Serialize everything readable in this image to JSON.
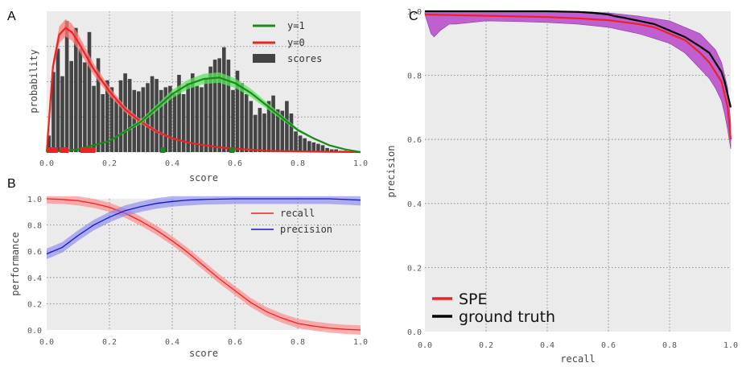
{
  "colors": {
    "bg": "#ebebeb",
    "green": "#1a8a1a",
    "green_band": "#5fe35f",
    "red": "#ee2222",
    "red_band": "#ff7b7b",
    "bars": "#444444",
    "blue": "#1515cc",
    "blue_band": "#8080ee",
    "black": "#000000",
    "magenta": "#c060d0"
  },
  "chart_data": [
    {
      "panel": "A",
      "type": "bar",
      "xlabel": "score",
      "ylabel": "probability",
      "xlim": [
        0,
        1
      ],
      "xticks": [
        "0.0",
        "0.2",
        "0.4",
        "0.6",
        "0.8",
        "1.0"
      ],
      "legend_position": "top-right",
      "grid": true,
      "legend": [
        {
          "label": "y=1",
          "kind": "line",
          "color": "green"
        },
        {
          "label": "y=0",
          "kind": "line",
          "color": "red"
        },
        {
          "label": "scores",
          "kind": "bar",
          "color": "bars"
        }
      ],
      "histogram": {
        "bin_start": 0.0,
        "bin_width": 0.0143,
        "heights": [
          0.12,
          0.58,
          0.75,
          0.55,
          0.95,
          0.66,
          0.9,
          0.75,
          0.65,
          0.87,
          0.48,
          0.68,
          0.42,
          0.52,
          0.47,
          0.38,
          0.52,
          0.57,
          0.53,
          0.45,
          0.44,
          0.47,
          0.5,
          0.55,
          0.53,
          0.45,
          0.47,
          0.48,
          0.42,
          0.56,
          0.42,
          0.5,
          0.57,
          0.48,
          0.47,
          0.53,
          0.62,
          0.67,
          0.68,
          0.76,
          0.67,
          0.45,
          0.59,
          0.5,
          0.42,
          0.37,
          0.27,
          0.32,
          0.28,
          0.37,
          0.41,
          0.31,
          0.3,
          0.37,
          0.28,
          0.15,
          0.12,
          0.1,
          0.08,
          0.07,
          0.06,
          0.05,
          0.03,
          0.02,
          0.02,
          0.01,
          0.01,
          0.0,
          0.0,
          0.0
        ]
      },
      "curves": [
        {
          "name": "y=0",
          "x": [
            0.0,
            0.02,
            0.04,
            0.06,
            0.08,
            0.1,
            0.12,
            0.15,
            0.2,
            0.25,
            0.3,
            0.35,
            0.4,
            0.45,
            0.5,
            0.55,
            0.6,
            0.7,
            0.8,
            0.9,
            1.0
          ],
          "y": [
            0.0,
            0.62,
            0.85,
            0.9,
            0.87,
            0.8,
            0.72,
            0.6,
            0.44,
            0.31,
            0.22,
            0.15,
            0.1,
            0.07,
            0.05,
            0.035,
            0.025,
            0.01,
            0.005,
            0.002,
            0.0
          ]
        },
        {
          "name": "y=1",
          "x": [
            0.0,
            0.1,
            0.2,
            0.3,
            0.35,
            0.4,
            0.45,
            0.5,
            0.55,
            0.6,
            0.65,
            0.7,
            0.75,
            0.8,
            0.85,
            0.9,
            0.95,
            1.0
          ],
          "y": [
            0.0,
            0.02,
            0.08,
            0.22,
            0.32,
            0.42,
            0.49,
            0.53,
            0.54,
            0.5,
            0.43,
            0.34,
            0.25,
            0.16,
            0.1,
            0.05,
            0.02,
            0.0
          ]
        }
      ],
      "rug": {
        "red": [
          0.01,
          0.025,
          0.05,
          0.06,
          0.115,
          0.125,
          0.135,
          0.145
        ],
        "green": [
          0.37,
          0.59
        ]
      }
    },
    {
      "panel": "B",
      "type": "line",
      "xlabel": "score",
      "ylabel": "performance",
      "xlim": [
        0,
        1
      ],
      "ylim": [
        0,
        1
      ],
      "xticks": [
        "0.0",
        "0.2",
        "0.4",
        "0.6",
        "0.8",
        "1.0"
      ],
      "yticks": [
        "0.0",
        "0.2",
        "0.4",
        "0.6",
        "0.8",
        "1.0"
      ],
      "legend_position": "top-right",
      "grid": true,
      "series": [
        {
          "name": "recall",
          "color": "red",
          "x": [
            0.0,
            0.05,
            0.1,
            0.15,
            0.2,
            0.25,
            0.3,
            0.35,
            0.4,
            0.45,
            0.5,
            0.55,
            0.6,
            0.65,
            0.7,
            0.75,
            0.8,
            0.85,
            0.9,
            0.95,
            1.0
          ],
          "y": [
            1.0,
            0.995,
            0.985,
            0.965,
            0.935,
            0.89,
            0.83,
            0.76,
            0.68,
            0.59,
            0.49,
            0.39,
            0.3,
            0.21,
            0.14,
            0.09,
            0.05,
            0.03,
            0.015,
            0.005,
            0.0
          ]
        },
        {
          "name": "precision",
          "color": "blue",
          "x": [
            0.0,
            0.05,
            0.1,
            0.15,
            0.2,
            0.25,
            0.3,
            0.35,
            0.4,
            0.45,
            0.5,
            0.6,
            0.7,
            0.8,
            0.9,
            1.0
          ],
          "y": [
            0.58,
            0.63,
            0.72,
            0.8,
            0.86,
            0.91,
            0.94,
            0.965,
            0.98,
            0.99,
            0.995,
            1.0,
            1.0,
            1.0,
            1.0,
            0.99
          ]
        }
      ]
    },
    {
      "panel": "C",
      "type": "line",
      "xlabel": "recall",
      "ylabel": "precision",
      "xlim": [
        0,
        1
      ],
      "ylim": [
        0,
        1
      ],
      "xticks": [
        "0.0",
        "0.2",
        "0.4",
        "0.6",
        "0.8",
        "1.0"
      ],
      "yticks": [
        "0.0",
        "0.2",
        "0.4",
        "0.6",
        "0.8",
        "1.0"
      ],
      "legend_position": "bottom-left",
      "grid": true,
      "series": [
        {
          "name": "SPE",
          "color": "red",
          "x": [
            0.0,
            0.1,
            0.2,
            0.3,
            0.4,
            0.5,
            0.6,
            0.7,
            0.75,
            0.8,
            0.85,
            0.9,
            0.93,
            0.95,
            0.97,
            0.98,
            0.99,
            1.0
          ],
          "y": [
            0.99,
            0.988,
            0.986,
            0.984,
            0.982,
            0.978,
            0.972,
            0.96,
            0.95,
            0.93,
            0.91,
            0.87,
            0.84,
            0.81,
            0.78,
            0.74,
            0.7,
            0.6
          ]
        },
        {
          "name": "ground truth",
          "color": "black",
          "x": [
            0.0,
            0.1,
            0.2,
            0.3,
            0.4,
            0.5,
            0.55,
            0.6,
            0.62,
            0.65,
            0.7,
            0.75,
            0.8,
            0.85,
            0.9,
            0.93,
            0.95,
            0.97,
            0.98,
            0.99,
            1.0
          ],
          "y": [
            1.0,
            1.0,
            1.0,
            1.0,
            1.0,
            0.998,
            0.995,
            0.99,
            0.985,
            0.98,
            0.97,
            0.96,
            0.94,
            0.92,
            0.89,
            0.87,
            0.84,
            0.81,
            0.78,
            0.74,
            0.7
          ]
        }
      ],
      "band": {
        "x": [
          0.0,
          0.02,
          0.03,
          0.05,
          0.08,
          0.1,
          0.2,
          0.3,
          0.4,
          0.5,
          0.6,
          0.7,
          0.8,
          0.85,
          0.9,
          0.93,
          0.95,
          0.97,
          0.98,
          0.99,
          1.0
        ],
        "upper": [
          1.0,
          1.0,
          1.0,
          1.0,
          1.0,
          1.0,
          1.0,
          1.0,
          1.0,
          1.0,
          0.995,
          0.985,
          0.97,
          0.95,
          0.93,
          0.9,
          0.88,
          0.84,
          0.8,
          0.76,
          0.65
        ],
        "lower": [
          0.99,
          0.93,
          0.92,
          0.94,
          0.96,
          0.96,
          0.97,
          0.968,
          0.965,
          0.96,
          0.95,
          0.93,
          0.9,
          0.87,
          0.82,
          0.79,
          0.76,
          0.72,
          0.68,
          0.63,
          0.57
        ]
      }
    }
  ]
}
